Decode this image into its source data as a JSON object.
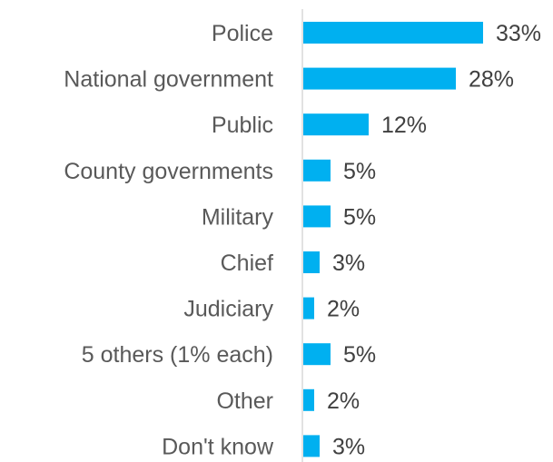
{
  "chart_data": {
    "type": "bar",
    "orientation": "horizontal",
    "categories": [
      "Police",
      "National government",
      "Public",
      "County governments",
      "Military",
      "Chief",
      "Judiciary",
      "5 others (1% each)",
      "Other",
      "Don't know"
    ],
    "values": [
      33,
      28,
      12,
      5,
      5,
      3,
      2,
      5,
      2,
      3
    ],
    "value_labels": [
      "33%",
      "28%",
      "12%",
      "5%",
      "5%",
      "3%",
      "2%",
      "5%",
      "2%",
      "3%"
    ],
    "unit": "%",
    "title": "",
    "xlabel": "",
    "ylabel": "",
    "xlim": [
      0,
      33
    ],
    "grid": false,
    "legend": "none",
    "bar_color": "#00B0F0",
    "axis_color": "#D9D9D9"
  }
}
